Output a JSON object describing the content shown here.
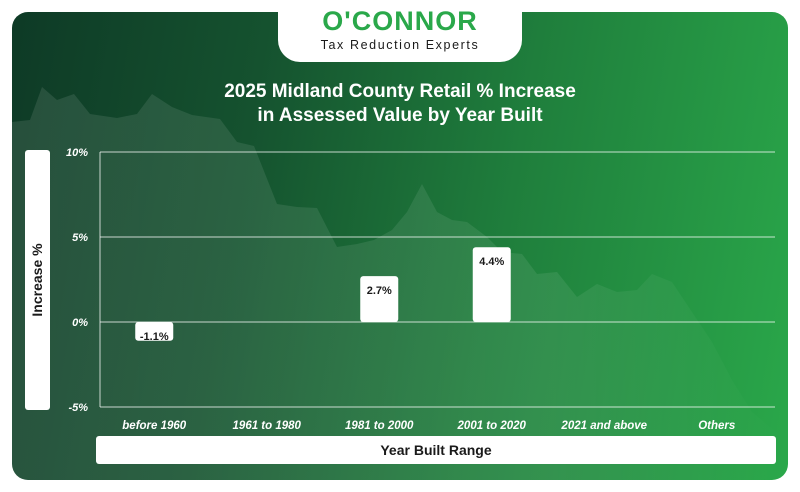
{
  "brand": {
    "name": "O'CONNOR",
    "tagline": "Tax Reduction Experts"
  },
  "chart_data": {
    "type": "bar",
    "title_line1": "2025 Midland County Retail % Increase",
    "title_line2": "in Assessed Value by Year Built",
    "xlabel": "Year Built Range",
    "ylabel": "Increase %",
    "categories": [
      "before 1960",
      "1961 to 1980",
      "1981 to 2000",
      "2001 to 2020",
      "2021 and above",
      "Others"
    ],
    "values": [
      -1.1,
      null,
      2.7,
      4.4,
      null,
      null
    ],
    "data_labels": [
      "-1.1%",
      "",
      "2.7%",
      "4.4%",
      "",
      ""
    ],
    "ylim": [
      -5,
      10
    ],
    "yticks": [
      10,
      5,
      0,
      -5
    ],
    "ytick_labels": [
      "10%",
      "5%",
      "0%",
      "-5%"
    ],
    "grid": true,
    "colors": {
      "bar": "#ffffff",
      "grid": "#ffffff",
      "tick_text": "#ffffff",
      "label_text": "#1a1a1a"
    }
  }
}
